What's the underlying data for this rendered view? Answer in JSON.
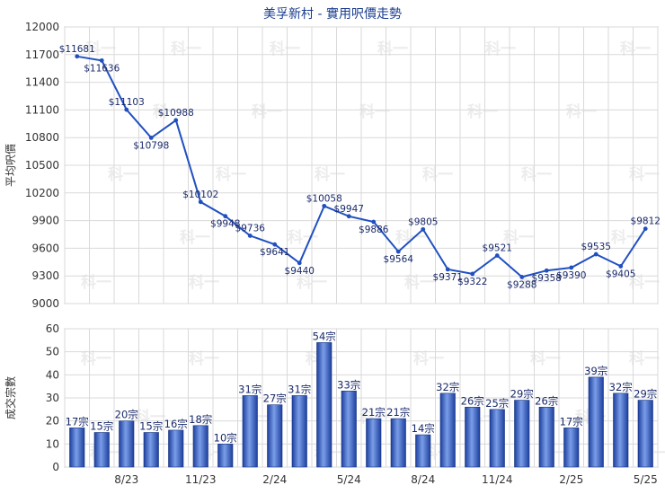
{
  "chart_data": [
    {
      "type": "line",
      "title": "美孚新村 - 實用呎價走勢",
      "ylabel": "平均呎價",
      "ylim": [
        9000,
        12000
      ],
      "y_ticks": [
        9000,
        9300,
        9600,
        9900,
        10200,
        10500,
        10800,
        11100,
        11400,
        11700,
        12000
      ],
      "grid": true,
      "legend": "none",
      "color": "#2050c0",
      "series": [
        {
          "values": [
            11681,
            11636,
            11103,
            10798,
            10988,
            10102,
            9948,
            9736,
            9641,
            9440,
            10058,
            9947,
            9886,
            9564,
            9805,
            9371,
            9322,
            9521,
            9288,
            9358,
            9390,
            9535,
            9405,
            9812
          ],
          "labels": [
            "$11681",
            "$11636",
            "$11103",
            "$10798",
            "$10988",
            "$10102",
            "$9948",
            "$9736",
            "$9641",
            "$9440",
            "$10058",
            "$9947",
            "$9886",
            "$9564",
            "$9805",
            "$9371",
            "$9322",
            "$9521",
            "$9288",
            "$9358",
            "$9390",
            "$9535",
            "$9405",
            "$9812"
          ]
        }
      ]
    },
    {
      "type": "bar",
      "ylabel": "成交宗數",
      "ylim": [
        0,
        60
      ],
      "y_ticks": [
        0,
        10,
        20,
        30,
        40,
        50,
        60
      ],
      "x_tick_labels": [
        "8/23",
        "11/23",
        "2/24",
        "5/24",
        "8/24",
        "11/24",
        "2/25",
        "5/25"
      ],
      "grid": true,
      "legend": "none",
      "color": "#3a64c8",
      "series": [
        {
          "values": [
            17,
            15,
            20,
            15,
            16,
            18,
            10,
            31,
            27,
            31,
            54,
            33,
            21,
            21,
            14,
            32,
            26,
            25,
            29,
            26,
            17,
            39,
            32,
            29
          ],
          "labels": [
            "17宗",
            "15宗",
            "20宗",
            "15宗",
            "16宗",
            "18宗",
            "10宗",
            "31宗",
            "27宗",
            "31宗",
            "54宗",
            "33宗",
            "21宗",
            "21宗",
            "14宗",
            "32宗",
            "26宗",
            "25宗",
            "29宗",
            "26宗",
            "17宗",
            "39宗",
            "32宗",
            "29宗"
          ]
        }
      ]
    }
  ]
}
